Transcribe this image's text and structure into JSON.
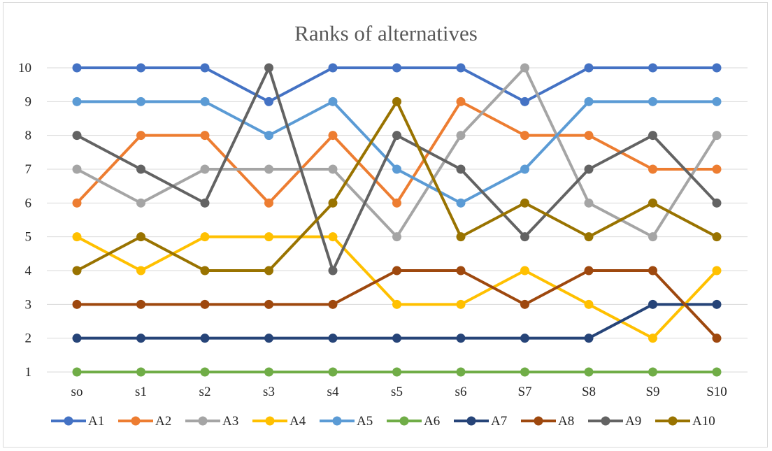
{
  "chart_data": {
    "type": "line",
    "title": "Ranks of alternatives",
    "xlabel": "",
    "ylabel": "",
    "categories": [
      "so",
      "s1",
      "s2",
      "s3",
      "s4",
      "s5",
      "s6",
      "S7",
      "S8",
      "S9",
      "S10"
    ],
    "yticks": [
      "1",
      "2",
      "3",
      "4",
      "5",
      "6",
      "7",
      "8",
      "9",
      "10"
    ],
    "ylim": [
      1,
      10
    ],
    "grid": "horizontal",
    "legend_position": "bottom",
    "markers": true,
    "series": [
      {
        "name": "A1",
        "color": "#4472C4",
        "values": [
          10,
          10,
          10,
          9,
          10,
          10,
          10,
          9,
          10,
          10,
          10
        ]
      },
      {
        "name": "A2",
        "color": "#ED7D31",
        "values": [
          6,
          8,
          8,
          6,
          8,
          6,
          9,
          8,
          8,
          7,
          7
        ]
      },
      {
        "name": "A3",
        "color": "#A5A5A5",
        "values": [
          7,
          6,
          7,
          7,
          7,
          5,
          8,
          10,
          6,
          5,
          8
        ]
      },
      {
        "name": "A4",
        "color": "#FFC000",
        "values": [
          5,
          4,
          5,
          5,
          5,
          3,
          3,
          4,
          3,
          2,
          4
        ]
      },
      {
        "name": "A5",
        "color": "#5B9BD5",
        "values": [
          9,
          9,
          9,
          8,
          9,
          7,
          6,
          7,
          9,
          9,
          9
        ]
      },
      {
        "name": "A6",
        "color": "#70AD47",
        "values": [
          1,
          1,
          1,
          1,
          1,
          1,
          1,
          1,
          1,
          1,
          1
        ]
      },
      {
        "name": "A7",
        "color": "#264478",
        "values": [
          2,
          2,
          2,
          2,
          2,
          2,
          2,
          2,
          2,
          3,
          3
        ]
      },
      {
        "name": "A8",
        "color": "#9E480E",
        "values": [
          3,
          3,
          3,
          3,
          3,
          4,
          4,
          3,
          4,
          4,
          2
        ]
      },
      {
        "name": "A9",
        "color": "#636363",
        "values": [
          8,
          7,
          6,
          10,
          4,
          8,
          7,
          5,
          7,
          8,
          6
        ]
      },
      {
        "name": "A10",
        "color": "#997300",
        "values": [
          4,
          5,
          4,
          4,
          6,
          9,
          5,
          6,
          5,
          6,
          5
        ]
      }
    ]
  }
}
